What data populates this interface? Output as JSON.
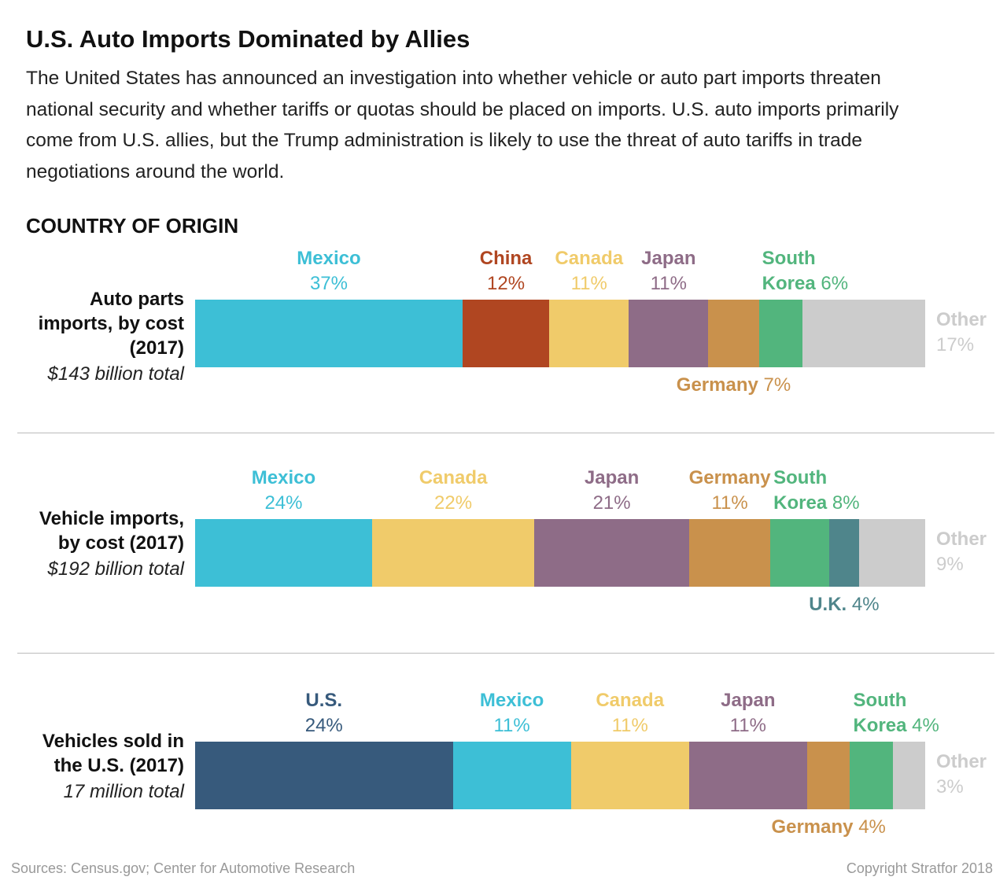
{
  "title": "U.S. Auto Imports Dominated by Allies",
  "subtitle": "The United States has announced an investigation into whether vehicle or auto part imports threaten national security and whether tariffs or quotas should be placed on imports. U.S. auto imports primarily come from U.S. allies, but the Trump administration is likely to use the threat of auto tariffs in trade negotiations around the world.",
  "section_title": "COUNTRY OF ORIGIN",
  "chart_data": [
    {
      "type": "bar",
      "orientation": "horizontal",
      "stacked": true,
      "title": "Auto parts imports, by cost (2017)",
      "subtitle": "$143 billion total",
      "series": [
        {
          "name": "Mexico",
          "color": "#3dbfd6",
          "values": [
            37
          ],
          "value_labels": [
            "37%"
          ]
        },
        {
          "name": "China",
          "color": "#b04621",
          "values": [
            12
          ],
          "value_labels": [
            "12%"
          ]
        },
        {
          "name": "Canada",
          "color": "#f0cb6a",
          "values": [
            11
          ],
          "value_labels": [
            "11%"
          ]
        },
        {
          "name": "Japan",
          "color": "#8e6c87",
          "values": [
            11
          ],
          "value_labels": [
            "11%"
          ]
        },
        {
          "name": "Germany",
          "color": "#c9914c",
          "values": [
            7
          ],
          "value_labels": [
            "7%"
          ]
        },
        {
          "name": "South Korea",
          "color": "#52b57d",
          "values": [
            6
          ],
          "value_labels": [
            "6%"
          ]
        },
        {
          "name": "Other",
          "color": "#cccccc",
          "values": [
            17
          ],
          "value_labels": [
            "17%"
          ]
        }
      ]
    },
    {
      "type": "bar",
      "orientation": "horizontal",
      "stacked": true,
      "title": "Vehicle imports, by cost (2017)",
      "subtitle": "$192 billion total",
      "series": [
        {
          "name": "Mexico",
          "color": "#3dbfd6",
          "values": [
            24
          ],
          "value_labels": [
            "24%"
          ]
        },
        {
          "name": "Canada",
          "color": "#f0cb6a",
          "values": [
            22
          ],
          "value_labels": [
            "22%"
          ]
        },
        {
          "name": "Japan",
          "color": "#8e6c87",
          "values": [
            21
          ],
          "value_labels": [
            "21%"
          ]
        },
        {
          "name": "Germany",
          "color": "#c9914c",
          "values": [
            11
          ],
          "value_labels": [
            "11%"
          ]
        },
        {
          "name": "South Korea",
          "color": "#52b57d",
          "values": [
            8
          ],
          "value_labels": [
            "8%"
          ]
        },
        {
          "name": "U.K.",
          "color": "#4f858b",
          "values": [
            4
          ],
          "value_labels": [
            "4%"
          ]
        },
        {
          "name": "Other",
          "color": "#cccccc",
          "values": [
            9
          ],
          "value_labels": [
            "9%"
          ]
        }
      ]
    },
    {
      "type": "bar",
      "orientation": "horizontal",
      "stacked": true,
      "title": "Vehicles sold in the U.S. (2017)",
      "subtitle": "17 million total",
      "series": [
        {
          "name": "U.S.",
          "color": "#375a7c",
          "values": [
            24
          ],
          "value_labels": [
            "24%"
          ]
        },
        {
          "name": "Mexico",
          "color": "#3dbfd6",
          "values": [
            11
          ],
          "value_labels": [
            "11%"
          ]
        },
        {
          "name": "Canada",
          "color": "#f0cb6a",
          "values": [
            11
          ],
          "value_labels": [
            "11%"
          ]
        },
        {
          "name": "Japan",
          "color": "#8e6c87",
          "values": [
            11
          ],
          "value_labels": [
            "11%"
          ]
        },
        {
          "name": "Germany",
          "color": "#c9914c",
          "values": [
            4
          ],
          "value_labels": [
            "4%"
          ]
        },
        {
          "name": "South Korea",
          "color": "#52b57d",
          "values": [
            4
          ],
          "value_labels": [
            "4%"
          ]
        },
        {
          "name": "Other",
          "color": "#cccccc",
          "values": [
            3
          ],
          "value_labels": [
            "3%"
          ]
        }
      ]
    }
  ],
  "source": "Sources: Census.gov; Center for Automotive Research",
  "copyright": "Copyright Stratfor 2018"
}
